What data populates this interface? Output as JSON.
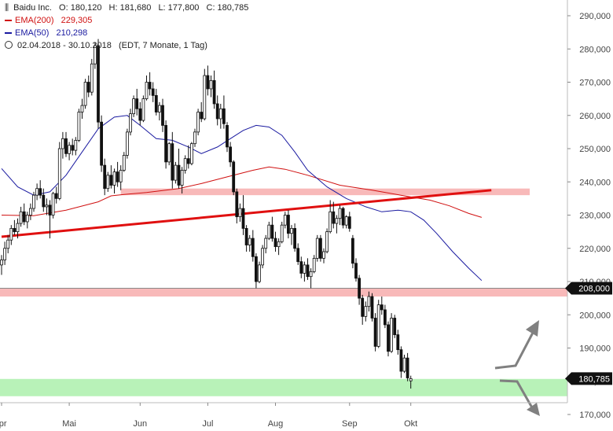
{
  "header": {
    "icon": "bar-chart-icon",
    "symbol": "Baidu Inc.",
    "open": "O: 180,120",
    "high": "H: 181,680",
    "low": "L: 177,800",
    "close": "C: 180,785",
    "ema200_label": "EMA(200)",
    "ema200_value": "229,305",
    "ema50_label": "EMA(50)",
    "ema50_value": "210,298",
    "period": "02.04.2018 - 30.10.2018",
    "period_detail": "(EDT, 7 Monate, 1 Tag)"
  },
  "colors": {
    "up_candle": "#ffffff",
    "down_candle": "#111111",
    "ema200": "#d01010",
    "ema50": "#1a1aa0",
    "trendline": "#e01010",
    "resistance_zone": "#f8b9b9",
    "support_zone": "#b8f2b8",
    "arrow": "#808080",
    "price_tag": "#111111"
  },
  "chart_data": {
    "type": "candlestick",
    "ylim": [
      168000,
      292000
    ],
    "y_ticks": [
      {
        "value": 170000,
        "label": "170,000"
      },
      {
        "value": 180000,
        "label": "180,000"
      },
      {
        "value": 190000,
        "label": "190,000"
      },
      {
        "value": 200000,
        "label": "200,000"
      },
      {
        "value": 210000,
        "label": "210,000"
      },
      {
        "value": 220000,
        "label": "220,000"
      },
      {
        "value": 230000,
        "label": "230,000"
      },
      {
        "value": 240000,
        "label": "240,000"
      },
      {
        "value": 250000,
        "label": "250,000"
      },
      {
        "value": 260000,
        "label": "260,000"
      },
      {
        "value": 270000,
        "label": "270,000"
      },
      {
        "value": 280000,
        "label": "280,000"
      },
      {
        "value": 290000,
        "label": "290,000"
      }
    ],
    "x_ticks": [
      {
        "label": "Apr",
        "bar": 0
      },
      {
        "label": "Mai",
        "bar": 21
      },
      {
        "label": "Jun",
        "bar": 43
      },
      {
        "label": "Jul",
        "bar": 64
      },
      {
        "label": "Aug",
        "bar": 85
      },
      {
        "label": "Sep",
        "bar": 108
      },
      {
        "label": "Okt",
        "bar": 127
      }
    ],
    "grid": false,
    "price_tags": [
      {
        "value": 208000,
        "label": "208,000"
      },
      {
        "value": 180785,
        "label": "180,785"
      }
    ],
    "resistance_zone": {
      "bar_start": 37,
      "y_range": [
        236000,
        238000
      ]
    },
    "horizontal_band": {
      "y_range": [
        205500,
        208000
      ]
    },
    "support_zone": {
      "y_range": [
        175500,
        180700
      ]
    },
    "trendline": [
      {
        "bar": 0,
        "value": 223500
      },
      {
        "bar": 152,
        "value": 237500
      }
    ],
    "ema200": [
      [
        0,
        230000
      ],
      [
        10,
        229800
      ],
      [
        20,
        231500
      ],
      [
        30,
        234000
      ],
      [
        34,
        235800
      ],
      [
        38,
        236200
      ],
      [
        45,
        236800
      ],
      [
        55,
        238000
      ],
      [
        62,
        239500
      ],
      [
        70,
        241500
      ],
      [
        78,
        243500
      ],
      [
        83,
        244500
      ],
      [
        88,
        243800
      ],
      [
        95,
        242000
      ],
      [
        105,
        239000
      ],
      [
        115,
        237500
      ],
      [
        125,
        235800
      ],
      [
        133,
        234500
      ],
      [
        139,
        232800
      ],
      [
        145,
        230500
      ],
      [
        149,
        229305
      ]
    ],
    "ema50": [
      [
        0,
        244000
      ],
      [
        5,
        238500
      ],
      [
        10,
        236000
      ],
      [
        15,
        237000
      ],
      [
        20,
        242000
      ],
      [
        25,
        249000
      ],
      [
        30,
        256000
      ],
      [
        35,
        259500
      ],
      [
        39,
        260000
      ],
      [
        43,
        257000
      ],
      [
        48,
        253000
      ],
      [
        53,
        252500
      ],
      [
        58,
        250500
      ],
      [
        62,
        248500
      ],
      [
        67,
        250500
      ],
      [
        71,
        253000
      ],
      [
        75,
        255500
      ],
      [
        79,
        257000
      ],
      [
        83,
        256500
      ],
      [
        87,
        254000
      ],
      [
        91,
        249000
      ],
      [
        95,
        243500
      ],
      [
        101,
        238500
      ],
      [
        107,
        235000
      ],
      [
        113,
        232500
      ],
      [
        118,
        231000
      ],
      [
        123,
        231500
      ],
      [
        127,
        231000
      ],
      [
        131,
        228500
      ],
      [
        135,
        224500
      ],
      [
        140,
        219000
      ],
      [
        145,
        214000
      ],
      [
        149,
        210298
      ]
    ],
    "candles": [
      [
        215000,
        218000,
        212000,
        216500
      ],
      [
        216500,
        222000,
        215000,
        220000
      ],
      [
        220000,
        224000,
        218500,
        222500
      ],
      [
        222500,
        227000,
        221000,
        226000
      ],
      [
        226000,
        228500,
        224000,
        225000
      ],
      [
        225000,
        229000,
        223000,
        227500
      ],
      [
        227500,
        232500,
        226500,
        231000
      ],
      [
        231000,
        233500,
        227000,
        228000
      ],
      [
        228000,
        231000,
        226000,
        230000
      ],
      [
        230000,
        233500,
        228500,
        232000
      ],
      [
        232000,
        237000,
        231000,
        236000
      ],
      [
        236000,
        239500,
        234500,
        238000
      ],
      [
        238000,
        240500,
        235000,
        236000
      ],
      [
        236000,
        238000,
        231000,
        232500
      ],
      [
        232500,
        235000,
        230000,
        233000
      ],
      [
        233000,
        234500,
        223000,
        230000
      ],
      [
        230000,
        237000,
        229000,
        236500
      ],
      [
        236500,
        238500,
        233500,
        235000
      ],
      [
        235000,
        252000,
        234500,
        250000
      ],
      [
        250000,
        255000,
        247000,
        253000
      ],
      [
        253000,
        255000,
        247500,
        248500
      ],
      [
        248500,
        252000,
        246500,
        251000
      ],
      [
        251000,
        253000,
        248000,
        249500
      ],
      [
        249500,
        253500,
        248000,
        252500
      ],
      [
        252500,
        262000,
        252000,
        261000
      ],
      [
        261000,
        265000,
        259000,
        263000
      ],
      [
        263000,
        271000,
        262000,
        270000
      ],
      [
        270000,
        272000,
        265500,
        267000
      ],
      [
        267000,
        277000,
        266000,
        275500
      ],
      [
        275500,
        282000,
        274000,
        281000
      ],
      [
        281000,
        283000,
        256000,
        258000
      ],
      [
        258000,
        260000,
        243000,
        245000
      ],
      [
        245000,
        247000,
        236000,
        238000
      ],
      [
        238000,
        243000,
        237000,
        242000
      ],
      [
        242000,
        245000,
        238000,
        239000
      ],
      [
        239000,
        244000,
        236500,
        243000
      ],
      [
        243000,
        246000,
        238500,
        240000
      ],
      [
        240000,
        245000,
        237500,
        243500
      ],
      [
        243500,
        249000,
        243000,
        248000
      ],
      [
        248000,
        256000,
        247000,
        255000
      ],
      [
        255000,
        262000,
        254000,
        260500
      ],
      [
        260500,
        266000,
        259500,
        265000
      ],
      [
        265000,
        268000,
        260000,
        262000
      ],
      [
        262000,
        264000,
        257000,
        258500
      ],
      [
        258500,
        266000,
        258000,
        265000
      ],
      [
        265000,
        272000,
        264500,
        270000
      ],
      [
        270000,
        273000,
        266000,
        268000
      ],
      [
        268000,
        270000,
        264000,
        266000
      ],
      [
        266000,
        268000,
        260000,
        261000
      ],
      [
        261000,
        264000,
        258500,
        263000
      ],
      [
        263000,
        265000,
        255000,
        257000
      ],
      [
        257000,
        258500,
        244000,
        246000
      ],
      [
        246000,
        252000,
        245000,
        251500
      ],
      [
        251500,
        255000,
        238000,
        240500
      ],
      [
        240500,
        246000,
        239500,
        245000
      ],
      [
        245000,
        250000,
        238000,
        239000
      ],
      [
        239000,
        244500,
        236500,
        243500
      ],
      [
        243500,
        248000,
        242500,
        247000
      ],
      [
        247000,
        251000,
        244000,
        245500
      ],
      [
        245500,
        252000,
        245000,
        251500
      ],
      [
        251500,
        256000,
        250500,
        255000
      ],
      [
        255000,
        262000,
        254000,
        261000
      ],
      [
        261000,
        264000,
        258000,
        259000
      ],
      [
        259000,
        274000,
        258500,
        272000
      ],
      [
        272000,
        275000,
        266000,
        268000
      ],
      [
        268000,
        272000,
        265500,
        270500
      ],
      [
        270500,
        273500,
        262000,
        263500
      ],
      [
        263500,
        266000,
        257000,
        259000
      ],
      [
        259000,
        263500,
        256000,
        262000
      ],
      [
        262000,
        266000,
        256000,
        257500
      ],
      [
        257000,
        258000,
        249000,
        250500
      ],
      [
        250500,
        252000,
        244500,
        246000
      ],
      [
        246000,
        246500,
        236000,
        237000
      ],
      [
        237000,
        238000,
        227500,
        229500
      ],
      [
        229500,
        233500,
        228000,
        232000
      ],
      [
        232000,
        236000,
        224000,
        226000
      ],
      [
        226000,
        227000,
        219000,
        221000
      ],
      [
        221000,
        224000,
        219000,
        223000
      ],
      [
        223000,
        225500,
        216000,
        217500
      ],
      [
        217500,
        218500,
        208000,
        210000
      ],
      [
        210000,
        216000,
        209500,
        215000
      ],
      [
        215000,
        221000,
        214000,
        220000
      ],
      [
        220000,
        224000,
        218500,
        223000
      ],
      [
        223000,
        228000,
        222500,
        227000
      ],
      [
        227000,
        229500,
        222000,
        223000
      ],
      [
        223000,
        225000,
        219000,
        220500
      ],
      [
        220500,
        223000,
        218000,
        222000
      ],
      [
        222000,
        228000,
        221500,
        227000
      ],
      [
        227000,
        231000,
        226000,
        230000
      ],
      [
        230000,
        231500,
        223000,
        224500
      ],
      [
        224500,
        227000,
        221000,
        226000
      ],
      [
        226000,
        227500,
        219000,
        220000
      ],
      [
        220000,
        221500,
        215000,
        216000
      ],
      [
        216000,
        217500,
        211000,
        212500
      ],
      [
        212500,
        216000,
        210000,
        215000
      ],
      [
        215000,
        217000,
        210500,
        211500
      ],
      [
        211500,
        214000,
        208000,
        213000
      ],
      [
        213000,
        218000,
        212500,
        217000
      ],
      [
        217000,
        224000,
        216000,
        223000
      ],
      [
        223000,
        224000,
        216000,
        217000
      ],
      [
        217000,
        220000,
        215500,
        219000
      ],
      [
        219000,
        226000,
        218500,
        225000
      ],
      [
        225000,
        234500,
        224500,
        231000
      ],
      [
        231000,
        234000,
        226000,
        227500
      ],
      [
        227500,
        230000,
        224500,
        229000
      ],
      [
        229000,
        233000,
        227000,
        232000
      ],
      [
        232000,
        232500,
        226000,
        227000
      ],
      [
        227000,
        230000,
        226000,
        229500
      ],
      [
        229500,
        231000,
        225000,
        226000
      ],
      [
        223000,
        224000,
        214000,
        215500
      ],
      [
        215500,
        217000,
        210000,
        211000
      ],
      [
        211000,
        212000,
        203000,
        205000
      ],
      [
        205000,
        206000,
        197000,
        199500
      ],
      [
        199500,
        204000,
        198000,
        202500
      ],
      [
        202500,
        207000,
        201000,
        205500
      ],
      [
        205500,
        206500,
        198000,
        199000
      ],
      [
        199000,
        200500,
        189000,
        190500
      ],
      [
        190500,
        204500,
        190000,
        203000
      ],
      [
        203000,
        205500,
        200000,
        201500
      ],
      [
        201500,
        203000,
        196000,
        197000
      ],
      [
        197000,
        198000,
        187500,
        189000
      ],
      [
        189000,
        200500,
        188500,
        199000
      ],
      [
        199000,
        200000,
        193000,
        194000
      ],
      [
        194000,
        195500,
        188000,
        189500
      ],
      [
        189500,
        190500,
        181000,
        183000
      ],
      [
        183000,
        188000,
        182500,
        187000
      ],
      [
        187000,
        188500,
        180000,
        181000
      ],
      [
        180120,
        181680,
        177800,
        180785
      ]
    ]
  },
  "annotations": {
    "arrow_up": "arrow-up-scenario",
    "arrow_down": "arrow-down-scenario"
  }
}
